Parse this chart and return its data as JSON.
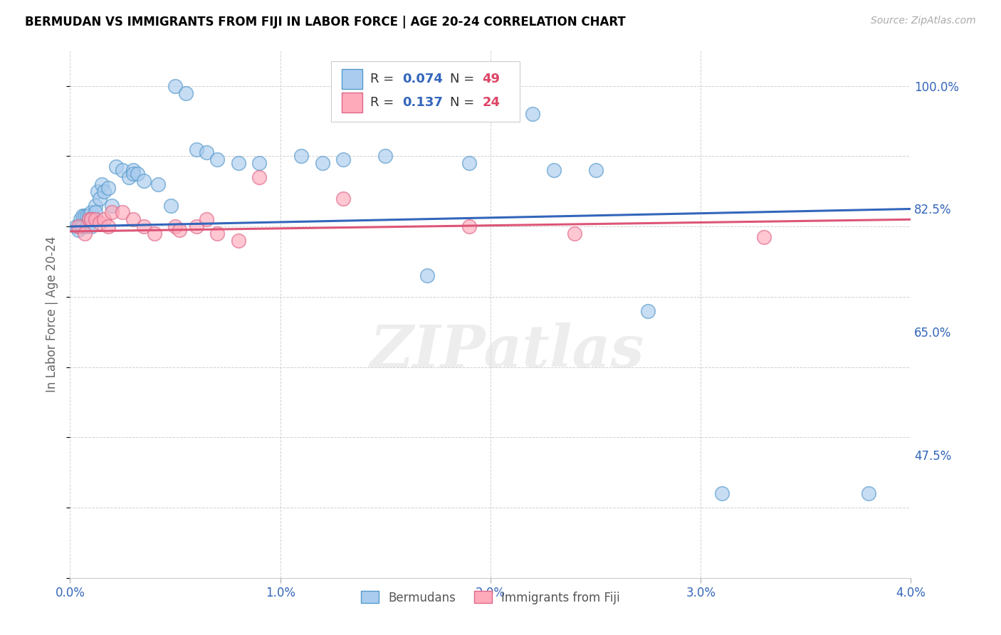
{
  "title": "BERMUDAN VS IMMIGRANTS FROM FIJI IN LABOR FORCE | AGE 20-24 CORRELATION CHART",
  "source": "Source: ZipAtlas.com",
  "ylabel_label": "In Labor Force | Age 20-24",
  "xlim": [
    0.0,
    0.04
  ],
  "ylim": [
    0.3,
    1.05
  ],
  "yticks": [
    0.475,
    0.65,
    0.825,
    1.0
  ],
  "ytick_labels": [
    "47.5%",
    "65.0%",
    "82.5%",
    "100.0%"
  ],
  "xticks": [
    0.0,
    0.01,
    0.02,
    0.03,
    0.04
  ],
  "xtick_labels": [
    "0.0%",
    "1.0%",
    "2.0%",
    "3.0%",
    "4.0%"
  ],
  "blue_color": "#aaccee",
  "blue_edge_color": "#5599cc",
  "pink_color": "#ffaabb",
  "pink_edge_color": "#dd6688",
  "line_blue_color": "#3366bb",
  "line_pink_color": "#dd5577",
  "r_color": "#3366bb",
  "n_color": "#dd4466",
  "bermudans_label": "Bermudans",
  "fiji_label": "Immigrants from Fiji",
  "watermark": "ZIPatlas",
  "legend_r1": "0.074",
  "legend_n1": "49",
  "legend_r2": "0.137",
  "legend_n2": "24",
  "blue_x": [
    0.0003,
    0.0004,
    0.0005,
    0.0005,
    0.0006,
    0.0006,
    0.0007,
    0.0008,
    0.0008,
    0.0009,
    0.001,
    0.001,
    0.001,
    0.0012,
    0.0012,
    0.0013,
    0.0014,
    0.0015,
    0.0016,
    0.0018,
    0.002,
    0.0022,
    0.0025,
    0.0028,
    0.003,
    0.003,
    0.0032,
    0.0035,
    0.0042,
    0.0048,
    0.005,
    0.0055,
    0.006,
    0.0065,
    0.007,
    0.008,
    0.009,
    0.011,
    0.012,
    0.013,
    0.015,
    0.017,
    0.019,
    0.022,
    0.023,
    0.025,
    0.0275,
    0.031,
    0.038
  ],
  "blue_y": [
    0.8,
    0.795,
    0.81,
    0.8,
    0.815,
    0.8,
    0.815,
    0.815,
    0.8,
    0.815,
    0.82,
    0.81,
    0.8,
    0.83,
    0.82,
    0.85,
    0.84,
    0.86,
    0.85,
    0.855,
    0.83,
    0.885,
    0.88,
    0.87,
    0.88,
    0.875,
    0.875,
    0.865,
    0.86,
    0.83,
    1.0,
    0.99,
    0.91,
    0.905,
    0.895,
    0.89,
    0.89,
    0.9,
    0.89,
    0.895,
    0.9,
    0.73,
    0.89,
    0.96,
    0.88,
    0.88,
    0.68,
    0.42,
    0.42
  ],
  "pink_x": [
    0.0004,
    0.0007,
    0.0009,
    0.001,
    0.0012,
    0.0014,
    0.0016,
    0.0018,
    0.002,
    0.0025,
    0.003,
    0.0035,
    0.004,
    0.005,
    0.0052,
    0.006,
    0.0065,
    0.007,
    0.008,
    0.009,
    0.013,
    0.019,
    0.024,
    0.033
  ],
  "pink_y": [
    0.8,
    0.79,
    0.81,
    0.81,
    0.81,
    0.805,
    0.81,
    0.8,
    0.82,
    0.82,
    0.81,
    0.8,
    0.79,
    0.8,
    0.795,
    0.8,
    0.81,
    0.79,
    0.78,
    0.87,
    0.84,
    0.8,
    0.79,
    0.785
  ],
  "blue_line_x0": 0.0,
  "blue_line_y0": 0.8,
  "blue_line_x1": 0.04,
  "blue_line_y1": 0.825,
  "pink_line_x0": 0.0,
  "pink_line_y0": 0.793,
  "pink_line_x1": 0.04,
  "pink_line_y1": 0.81
}
